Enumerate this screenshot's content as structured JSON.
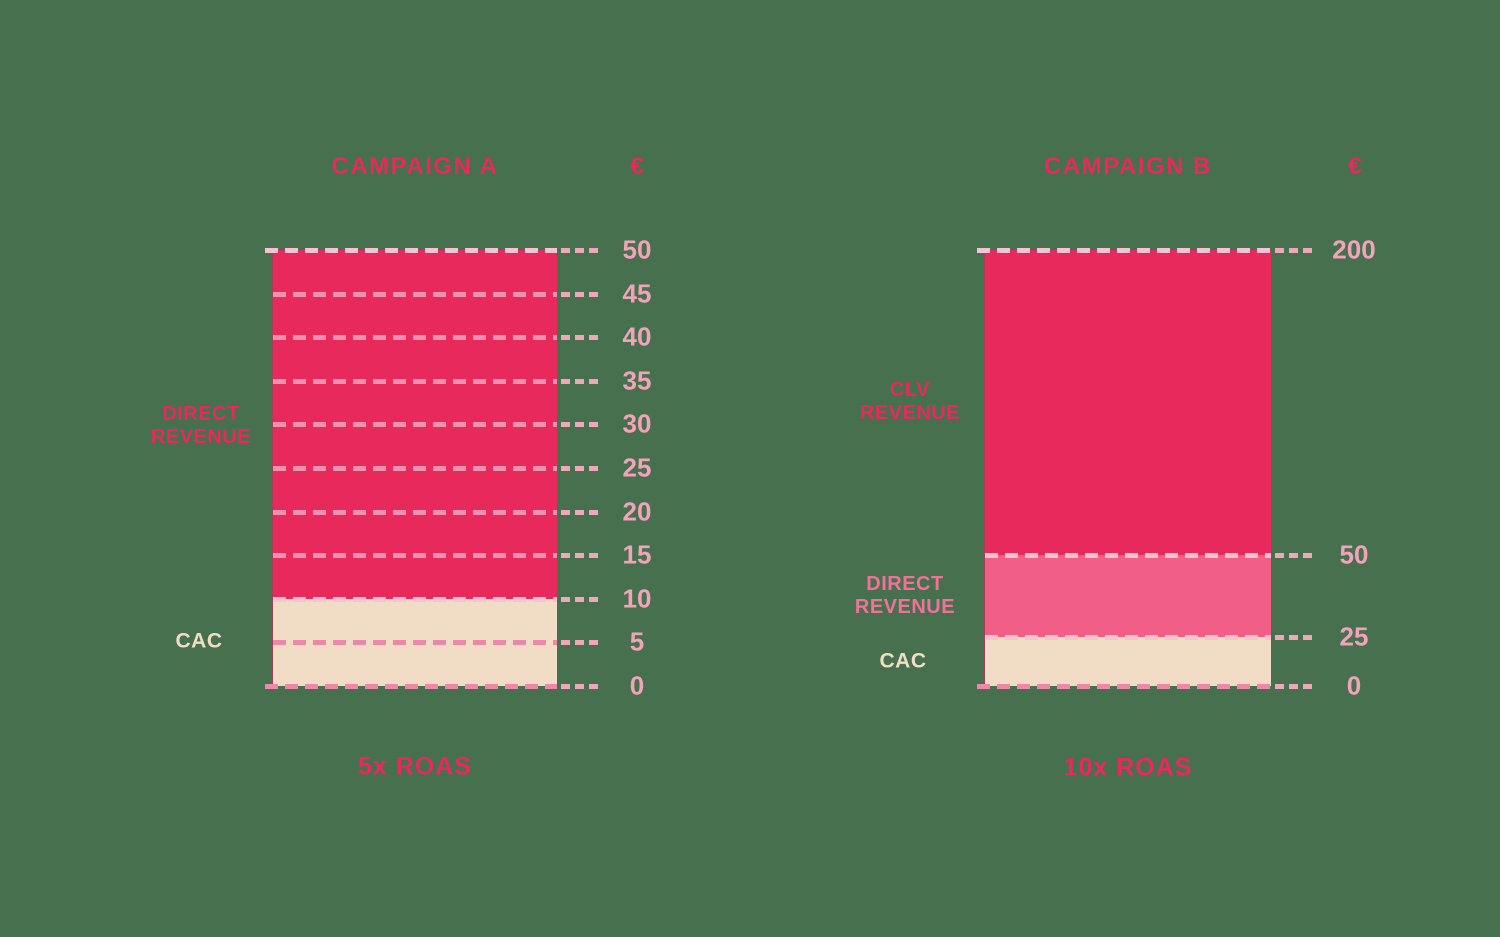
{
  "colors": {
    "background": "#47704E",
    "dark_pink": "#E8295B",
    "medium_pink": "#F15E86",
    "medium_pink_label": "#F2719A",
    "cream": "#F1DDC5",
    "tick_label_pink": "#F2A3BB",
    "grid_whitish": "#F7C3D0",
    "grid_pink_on_dark": "#EE93AF",
    "grid_pink_on_cream": "#F087AB",
    "tick_ext_pink": "#F2A6BB",
    "bar_edge_pink": "rgba(200,45,85,0.75)"
  },
  "charts": [
    {
      "id": "campaign-a",
      "title": "CAMPAIGN A",
      "currency_symbol": "€",
      "roas_label": "5x ROAS",
      "side_labels": [
        {
          "name": "direct-revenue",
          "lines": [
            "DIRECT",
            "REVENUE"
          ],
          "color": "dark_pink"
        },
        {
          "name": "cac",
          "lines": [
            "CAC"
          ],
          "color": "cream"
        }
      ],
      "segments": [
        {
          "name": "direct-revenue",
          "from": 10,
          "to": 50,
          "color": "dark_pink"
        },
        {
          "name": "cac",
          "from": 0,
          "to": 10,
          "color": "cream"
        }
      ],
      "axis": {
        "ticks": [
          {
            "label": "50",
            "value": 50,
            "line": "grid_whitish"
          },
          {
            "label": "45",
            "value": 45,
            "line": "grid_pink_on_dark"
          },
          {
            "label": "40",
            "value": 40,
            "line": "grid_pink_on_dark"
          },
          {
            "label": "35",
            "value": 35,
            "line": "grid_pink_on_dark"
          },
          {
            "label": "30",
            "value": 30,
            "line": "grid_pink_on_dark"
          },
          {
            "label": "25",
            "value": 25,
            "line": "grid_pink_on_dark"
          },
          {
            "label": "20",
            "value": 20,
            "line": "grid_pink_on_dark"
          },
          {
            "label": "15",
            "value": 15,
            "line": "grid_pink_on_dark"
          },
          {
            "label": "10",
            "value": 10,
            "line": "grid_whitish"
          },
          {
            "label": "5",
            "value": 5,
            "line": "grid_pink_on_cream"
          },
          {
            "label": "0",
            "value": 0,
            "line": "grid_pink_on_cream"
          }
        ]
      }
    },
    {
      "id": "campaign-b",
      "title": "CAMPAIGN B",
      "currency_symbol": "€",
      "roas_label": "10x ROAS",
      "side_labels": [
        {
          "name": "clv-revenue",
          "lines": [
            "CLV",
            "REVENUE"
          ],
          "color": "dark_pink"
        },
        {
          "name": "direct-revenue",
          "lines": [
            "DIRECT",
            "REVENUE"
          ],
          "color": "medium_pink_label"
        },
        {
          "name": "cac",
          "lines": [
            "CAC"
          ],
          "color": "cream"
        }
      ],
      "segments": [
        {
          "name": "clv-revenue",
          "from": 50,
          "to": 200,
          "color": "dark_pink"
        },
        {
          "name": "direct-revenue",
          "from": 25,
          "to": 50,
          "color": "medium_pink"
        },
        {
          "name": "cac",
          "from": 0,
          "to": 25,
          "color": "cream"
        }
      ],
      "axis": {
        "ticks": [
          {
            "label": "200",
            "value": 200,
            "line": "grid_whitish"
          },
          {
            "label": "50",
            "value": 50,
            "line": "grid_whitish"
          },
          {
            "label": "25",
            "value": 25,
            "line": "grid_whitish"
          },
          {
            "label": "0",
            "value": 0,
            "line": "grid_pink_on_cream"
          }
        ]
      }
    }
  ],
  "chart_data": [
    {
      "type": "bar",
      "title": "CAMPAIGN A",
      "ylabel": "€",
      "ylim": [
        0,
        50
      ],
      "yticks": [
        0,
        5,
        10,
        15,
        20,
        25,
        30,
        35,
        40,
        45,
        50
      ],
      "grid": true,
      "stack": [
        {
          "label": "CAC",
          "from": 0,
          "to": 10,
          "color": "#F1DDC5"
        },
        {
          "label": "DIRECT REVENUE",
          "from": 10,
          "to": 50,
          "color": "#E8295B"
        }
      ],
      "annotation": "5x ROAS"
    },
    {
      "type": "bar",
      "title": "CAMPAIGN B",
      "ylabel": "€",
      "ylim": [
        0,
        200
      ],
      "yticks": [
        0,
        25,
        50,
        200
      ],
      "grid": false,
      "stack": [
        {
          "label": "CAC",
          "from": 0,
          "to": 25,
          "color": "#F1DDC5"
        },
        {
          "label": "DIRECT REVENUE",
          "from": 25,
          "to": 50,
          "color": "#F15E86"
        },
        {
          "label": "CLV REVENUE",
          "from": 50,
          "to": 200,
          "color": "#E8295B"
        }
      ],
      "annotation": "10x ROAS"
    }
  ]
}
